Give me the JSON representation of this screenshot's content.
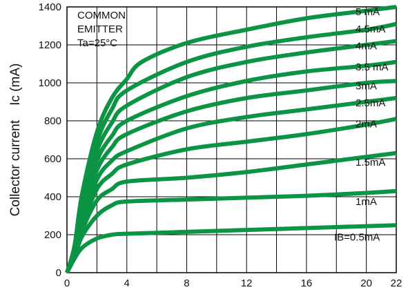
{
  "chart_data": {
    "type": "line",
    "title": "",
    "xlabel": "",
    "ylabel": "Collector current    Ic (mA)",
    "xlim": [
      0,
      22
    ],
    "ylim": [
      0,
      1400
    ],
    "grid": true,
    "line_color": "#0b9444",
    "x_ticks": [
      "0",
      "4",
      "8",
      "12",
      "16",
      "20",
      "22"
    ],
    "y_ticks": [
      "0",
      "200",
      "400",
      "600",
      "800",
      "1000",
      "1200",
      "1400"
    ],
    "annotation": [
      "COMMON",
      "EMITTER",
      "Ta=25°C"
    ],
    "series": [
      {
        "name": "IB=0.5mA",
        "x": [
          0,
          0.4,
          1,
          2,
          3,
          4,
          8,
          12,
          16,
          20,
          22
        ],
        "y": [
          0,
          60,
          130,
          180,
          200,
          205,
          215,
          225,
          235,
          245,
          250
        ]
      },
      {
        "name": "1mA",
        "x": [
          0,
          0.5,
          1,
          2,
          3,
          4,
          8,
          12,
          16,
          20,
          22
        ],
        "y": [
          0,
          80,
          190,
          300,
          355,
          375,
          385,
          395,
          405,
          420,
          430
        ]
      },
      {
        "name": "1.5mA",
        "x": [
          0,
          0.5,
          1,
          2,
          3,
          4,
          8,
          12,
          16,
          20,
          22
        ],
        "y": [
          0,
          85,
          220,
          380,
          440,
          480,
          500,
          530,
          570,
          610,
          630
        ]
      },
      {
        "name": "2mA",
        "x": [
          0,
          0.5,
          1,
          2,
          3,
          4,
          8,
          12,
          16,
          20,
          22
        ],
        "y": [
          0,
          90,
          240,
          440,
          520,
          570,
          650,
          690,
          730,
          780,
          810
        ]
      },
      {
        "name": "2.5mA",
        "x": [
          0,
          0.5,
          1,
          2,
          3,
          4,
          8,
          12,
          16,
          20,
          22
        ],
        "y": [
          0,
          95,
          260,
          490,
          590,
          640,
          760,
          820,
          860,
          900,
          920
        ]
      },
      {
        "name": "3mA",
        "x": [
          0,
          0.5,
          1,
          2,
          3,
          4,
          8,
          12,
          16,
          20,
          22
        ],
        "y": [
          0,
          100,
          290,
          540,
          660,
          730,
          850,
          920,
          960,
          1000,
          1010
        ]
      },
      {
        "name": "3.5 mA",
        "x": [
          0,
          0.5,
          1,
          2,
          3,
          4,
          8,
          12,
          16,
          20,
          22
        ],
        "y": [
          0,
          110,
          320,
          590,
          720,
          800,
          930,
          1010,
          1060,
          1090,
          1110
        ]
      },
      {
        "name": "4mA",
        "x": [
          0,
          0.5,
          1,
          2,
          3,
          4,
          8,
          12,
          16,
          20,
          22
        ],
        "y": [
          0,
          120,
          350,
          640,
          790,
          880,
          1030,
          1110,
          1160,
          1200,
          1220
        ]
      },
      {
        "name": "4.5mA",
        "x": [
          0,
          0.5,
          1,
          2,
          3,
          4,
          8,
          12,
          16,
          20,
          22
        ],
        "y": [
          0,
          130,
          380,
          690,
          860,
          960,
          1110,
          1190,
          1240,
          1280,
          1310
        ]
      },
      {
        "name": "5 mA",
        "x": [
          0,
          0.5,
          1,
          2,
          3,
          4,
          5,
          8,
          12,
          16,
          20,
          22
        ],
        "y": [
          0,
          140,
          410,
          740,
          920,
          1020,
          1110,
          1210,
          1280,
          1340,
          1380,
          1400
        ]
      }
    ]
  }
}
